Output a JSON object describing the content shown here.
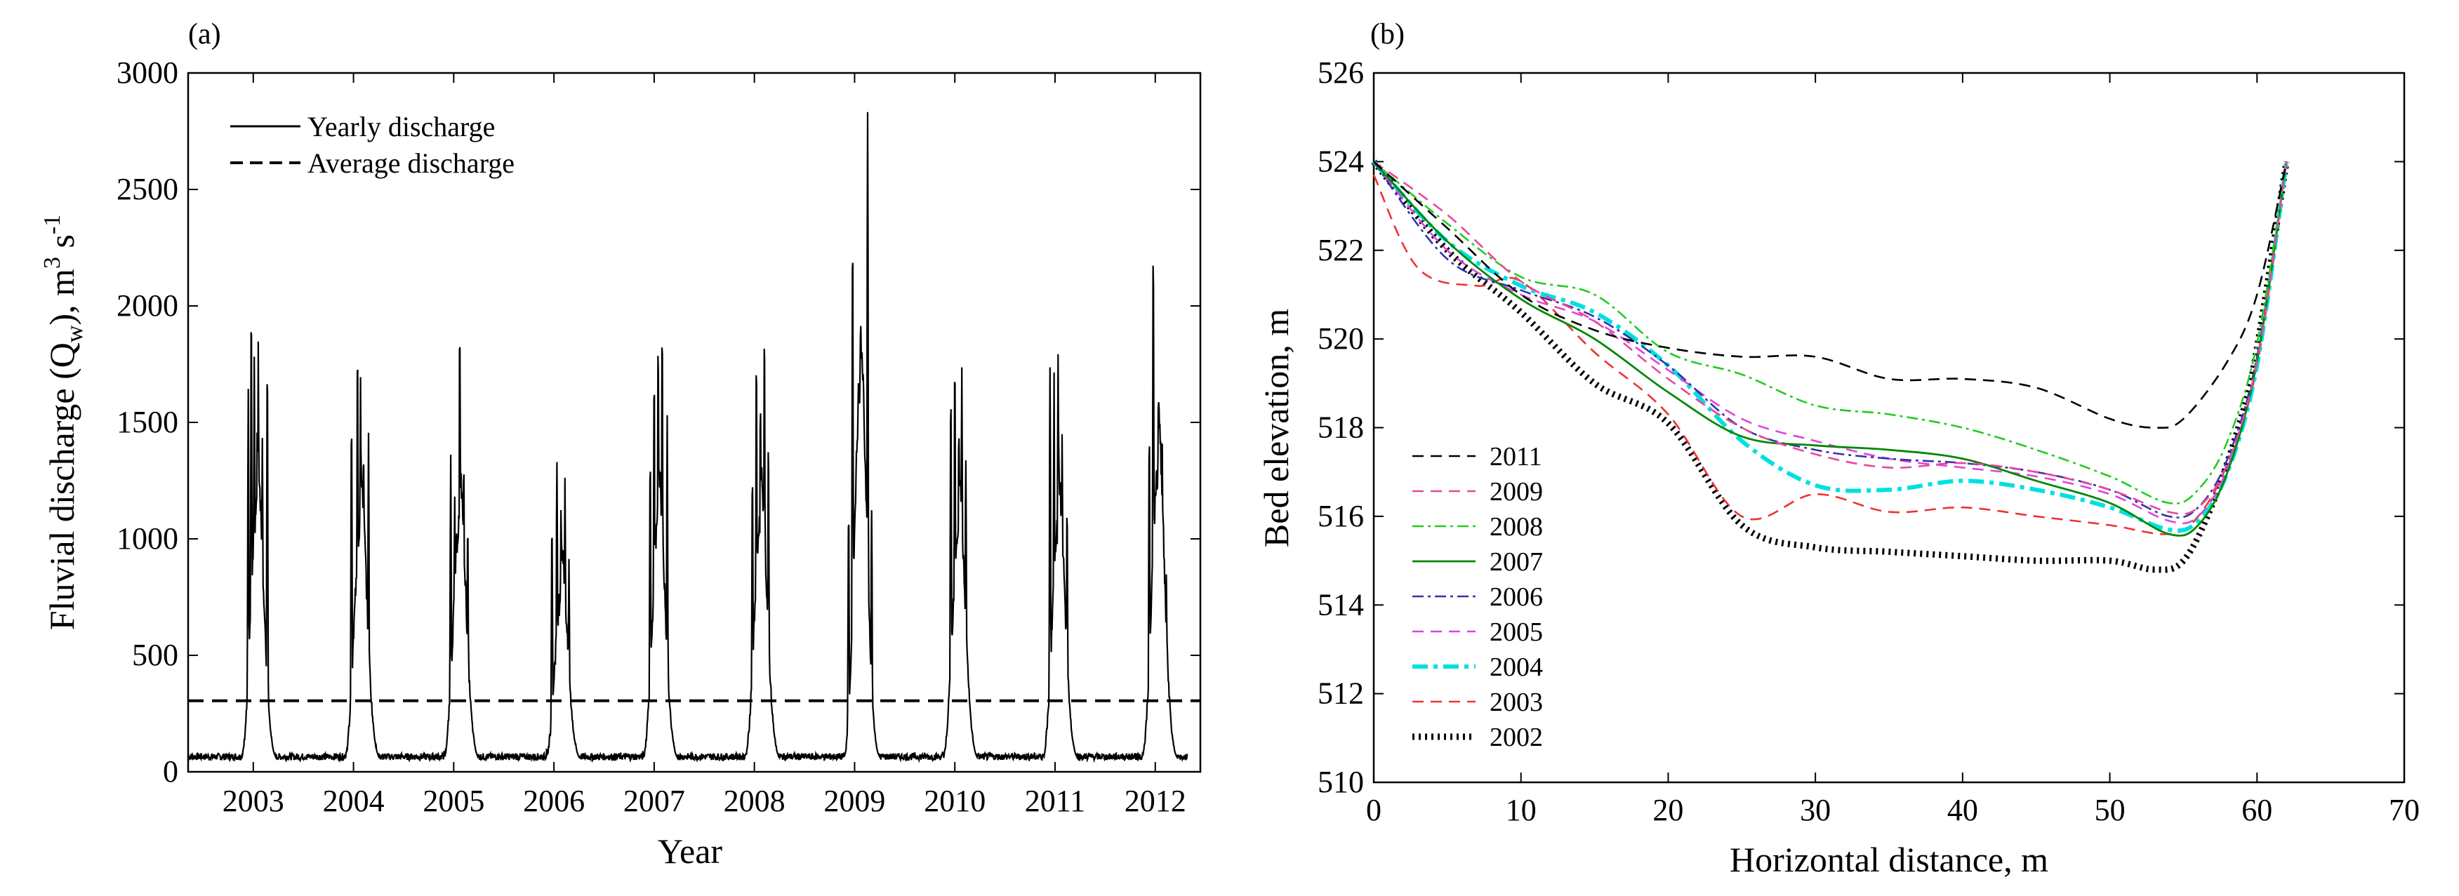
{
  "chart_data": [
    {
      "type": "line",
      "panel_label": "(a)",
      "xlabel": "Year",
      "ylabel": "Fluvial discharge (Q",
      "ylabel_sub": "w",
      "ylabel_close": "), m",
      "ylabel_sup": "3",
      "ylabel_unit": " s",
      "ylabel_sup2": "-1",
      "ylim": [
        0,
        3000
      ],
      "xlim": [
        2002.35,
        2012.45
      ],
      "yticks": [
        0,
        500,
        1000,
        1500,
        2000,
        2500,
        3000
      ],
      "xticks": [
        2003,
        2004,
        2005,
        2006,
        2007,
        2008,
        2009,
        2010,
        2011,
        2012
      ],
      "xticklabels": [
        "2003",
        "2004",
        "2005",
        "2006",
        "2007",
        "2008",
        "2009",
        "2010",
        "2011",
        "2012"
      ],
      "legend_position": "top-left",
      "legend": [
        "Yearly discharge",
        "Average discharge"
      ],
      "average_discharge": 305,
      "series": [
        {
          "name": "Yearly discharge",
          "peaks": [
            {
              "year": 2003,
              "max": 1950,
              "spikes": [
                [
                  2002.95,
                  1580
                ],
                [
                  2002.98,
                  1950
                ],
                [
                  2003.01,
                  1760
                ],
                [
                  2003.05,
                  1790
                ],
                [
                  2003.09,
                  1430
                ],
                [
                  2003.14,
                  1720
                ]
              ]
            },
            {
              "year": 2004,
              "max": 1810,
              "spikes": [
                [
                  2003.98,
                  1500
                ],
                [
                  2004.04,
                  1810
                ],
                [
                  2004.07,
                  1610
                ],
                [
                  2004.1,
                  1300
                ],
                [
                  2004.15,
                  1390
                ]
              ]
            },
            {
              "year": 2005,
              "max": 1820,
              "spikes": [
                [
                  2004.97,
                  1310
                ],
                [
                  2005.01,
                  1100
                ],
                [
                  2005.06,
                  1820
                ],
                [
                  2005.1,
                  1250
                ],
                [
                  2005.14,
                  1000
                ]
              ]
            },
            {
              "year": 2006,
              "max": 1245,
              "spikes": [
                [
                  2005.98,
                  1050
                ],
                [
                  2006.03,
                  1245
                ],
                [
                  2006.07,
                  1080
                ],
                [
                  2006.11,
                  1205
                ],
                [
                  2006.15,
                  870
                ]
              ]
            },
            {
              "year": 2007,
              "max": 1810,
              "spikes": [
                [
                  2006.96,
                  1330
                ],
                [
                  2007.0,
                  1610
                ],
                [
                  2007.04,
                  1780
                ],
                [
                  2007.08,
                  1810
                ],
                [
                  2007.13,
                  1470
                ]
              ]
            },
            {
              "year": 2008,
              "max": 1810,
              "spikes": [
                [
                  2007.98,
                  1250
                ],
                [
                  2008.02,
                  1690
                ],
                [
                  2008.06,
                  1520
                ],
                [
                  2008.1,
                  1810
                ],
                [
                  2008.14,
                  1380
                ]
              ]
            },
            {
              "year": 2009,
              "max": 2820,
              "spikes": [
                [
                  2008.94,
                  1100
                ],
                [
                  2008.98,
                  2250
                ],
                [
                  2009.04,
                  1690
                ],
                [
                  2009.08,
                  1340
                ],
                [
                  2009.13,
                  2820
                ],
                [
                  2009.17,
                  1100
                ]
              ]
            },
            {
              "year": 2010,
              "max": 1770,
              "spikes": [
                [
                  2009.96,
                  1600
                ],
                [
                  2010.0,
                  1770
                ],
                [
                  2010.04,
                  1440
                ],
                [
                  2010.07,
                  1650
                ],
                [
                  2010.11,
                  1300
                ]
              ]
            },
            {
              "year": 2011,
              "max": 1770,
              "spikes": [
                [
                  2010.95,
                  1730
                ],
                [
                  2010.99,
                  1620
                ],
                [
                  2011.03,
                  1770
                ],
                [
                  2011.07,
                  1440
                ],
                [
                  2011.12,
                  1090
                ]
              ]
            },
            {
              "year": 2012,
              "max": 2210,
              "spikes": [
                [
                  2011.94,
                  1420
                ],
                [
                  2011.98,
                  2210
                ],
                [
                  2012.03,
                  1060
                ],
                [
                  2012.07,
                  1400
                ],
                [
                  2012.11,
                  800
                ]
              ]
            }
          ],
          "baseflow_min": 50
        },
        {
          "name": "Average discharge",
          "values": [
            305
          ]
        }
      ]
    },
    {
      "type": "line",
      "panel_label": "(b)",
      "xlabel": "Horizontal distance, m",
      "ylabel": "Bed elevation, m",
      "xlim": [
        0,
        70
      ],
      "ylim": [
        510,
        526
      ],
      "xticks": [
        0,
        10,
        20,
        30,
        40,
        50,
        60,
        70
      ],
      "yticks": [
        510,
        512,
        514,
        516,
        518,
        520,
        522,
        524,
        526
      ],
      "legend_position": "left-middle",
      "series": [
        {
          "name": "2011",
          "color": "#000000",
          "style": "dashed",
          "x": [
            0,
            5,
            10,
            15,
            20,
            25,
            30,
            35,
            40,
            45,
            50,
            53,
            55,
            58,
            60,
            62
          ],
          "y": [
            524,
            522.5,
            521.0,
            520.2,
            519.8,
            519.6,
            519.6,
            519.1,
            519.1,
            518.9,
            518.2,
            518.0,
            518.2,
            519.5,
            521.0,
            524.0
          ]
        },
        {
          "name": "2009",
          "color": "#e8479b",
          "style": "dashed",
          "x": [
            0,
            5,
            10,
            15,
            20,
            25,
            30,
            35,
            40,
            45,
            50,
            54,
            56,
            58,
            60,
            62
          ],
          "y": [
            524,
            522.8,
            521.3,
            520.4,
            519.1,
            518.0,
            517.4,
            517.1,
            517.2,
            517.0,
            516.6,
            516.1,
            516.2,
            517.2,
            519.5,
            524.0
          ]
        },
        {
          "name": "2008",
          "color": "#22cc22",
          "style": "dashdot",
          "x": [
            0,
            5,
            10,
            15,
            20,
            25,
            30,
            35,
            40,
            45,
            50,
            54,
            56,
            58,
            60,
            62
          ],
          "y": [
            524,
            522.6,
            521.4,
            521.0,
            519.7,
            519.2,
            518.5,
            518.3,
            518.0,
            517.5,
            516.9,
            516.3,
            516.6,
            517.7,
            519.9,
            524.0
          ]
        },
        {
          "name": "2007",
          "color": "#008800",
          "style": "solid",
          "x": [
            0,
            5,
            10,
            15,
            20,
            25,
            30,
            35,
            40,
            45,
            50,
            54,
            56,
            58,
            60,
            62
          ],
          "y": [
            524,
            522.2,
            520.9,
            520.0,
            518.8,
            517.8,
            517.6,
            517.5,
            517.3,
            516.8,
            516.3,
            515.6,
            515.8,
            517.0,
            519.5,
            524.0
          ]
        },
        {
          "name": "2006",
          "color": "#3333aa",
          "style": "dashdot",
          "x": [
            0,
            5,
            10,
            15,
            20,
            25,
            30,
            35,
            40,
            45,
            50,
            54,
            56,
            58,
            60,
            62
          ],
          "y": [
            524,
            521.8,
            521.1,
            520.5,
            519.4,
            518.0,
            517.5,
            517.3,
            517.2,
            517.0,
            516.6,
            516.0,
            516.2,
            517.3,
            519.6,
            524.0
          ]
        },
        {
          "name": "2005",
          "color": "#dd44dd",
          "style": "dashed",
          "x": [
            0,
            5,
            10,
            15,
            20,
            25,
            30,
            35,
            40,
            45,
            50,
            54,
            56,
            58,
            60,
            62
          ],
          "y": [
            524,
            522.0,
            521.0,
            520.4,
            519.3,
            518.2,
            517.7,
            517.3,
            517.1,
            516.9,
            516.5,
            515.9,
            516.0,
            517.1,
            519.5,
            524.0
          ]
        },
        {
          "name": "2004",
          "color": "#00e0e0",
          "style": "dashdot-thick",
          "x": [
            0,
            5,
            10,
            15,
            20,
            25,
            30,
            35,
            40,
            45,
            50,
            54,
            56,
            58,
            60,
            62
          ],
          "y": [
            524,
            522.2,
            521.2,
            520.6,
            519.4,
            517.7,
            516.7,
            516.6,
            516.8,
            516.6,
            516.2,
            515.7,
            515.9,
            517.0,
            519.4,
            524.0
          ]
        },
        {
          "name": "2003",
          "color": "#ee3333",
          "style": "dashed",
          "x": [
            0,
            3,
            7,
            10,
            15,
            20,
            25,
            30,
            35,
            40,
            45,
            50,
            54,
            56,
            58,
            60,
            62
          ],
          "y": [
            523.7,
            521.6,
            521.2,
            521.3,
            519.7,
            518.3,
            516.0,
            516.5,
            516.1,
            516.2,
            516.0,
            515.8,
            515.6,
            516.0,
            517.2,
            519.4,
            524.0
          ]
        },
        {
          "name": "2002",
          "color": "#000000",
          "style": "dotted-thick",
          "x": [
            0,
            5,
            10,
            15,
            20,
            25,
            30,
            35,
            40,
            45,
            50,
            53,
            55,
            57,
            59,
            60,
            62
          ],
          "y": [
            524,
            522.0,
            520.6,
            519.0,
            518.1,
            515.8,
            515.3,
            515.2,
            515.1,
            515.0,
            515.0,
            514.8,
            515.0,
            516.3,
            518.3,
            519.8,
            524.0
          ]
        }
      ]
    }
  ]
}
